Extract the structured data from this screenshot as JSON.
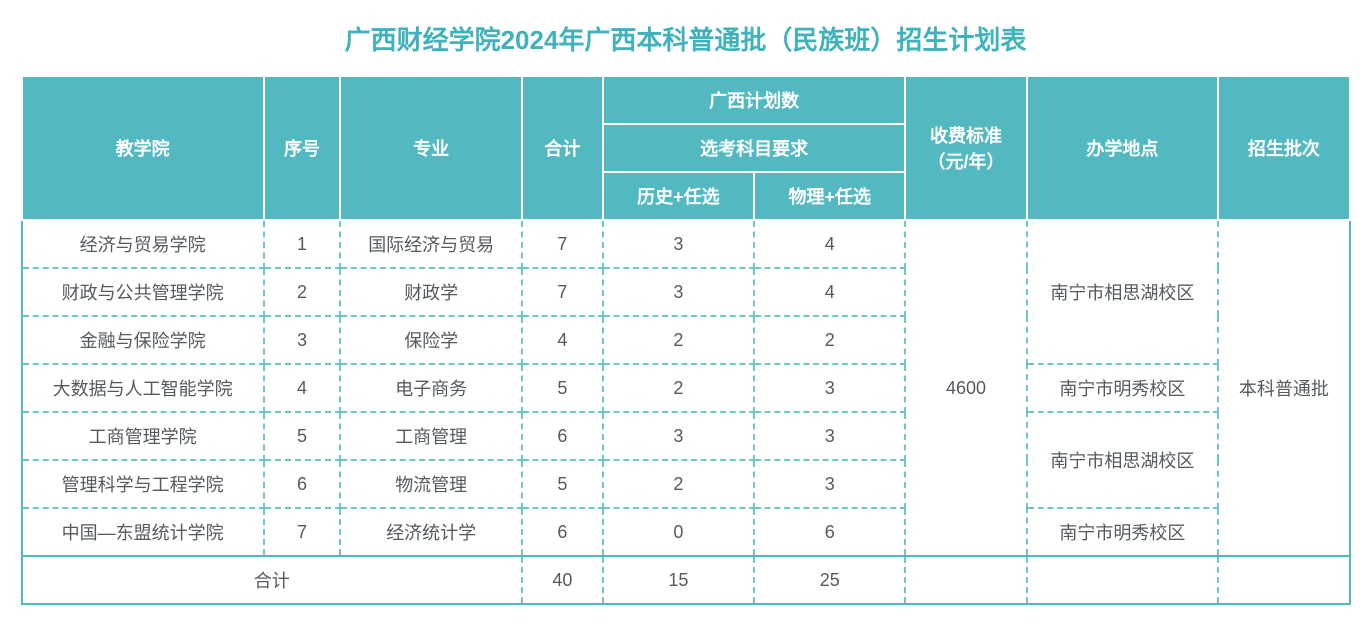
{
  "title": "广西财经学院2024年广西本科普通批（民族班）招生计划表",
  "title_color": "#3fb2bb",
  "header_bg": "#52b9c0",
  "header_text": "#ffffff",
  "body_text": "#555a5f",
  "border_dash_color": "#6fc5cb",
  "border_solid_color": "#52b9c0",
  "headers": {
    "school": "教学院",
    "index": "序号",
    "major": "专业",
    "total": "合计",
    "gx_plan": "广西计划数",
    "subject_req": "选考科目要求",
    "history": "历史+任选",
    "physics": "物理+任选",
    "fee": "收费标准（元/年）",
    "location": "办学地点",
    "batch": "招生批次"
  },
  "rows": [
    {
      "school": "经济与贸易学院",
      "index": "1",
      "major": "国际经济与贸易",
      "total": "7",
      "history": "3",
      "physics": "4"
    },
    {
      "school": "财政与公共管理学院",
      "index": "2",
      "major": "财政学",
      "total": "7",
      "history": "3",
      "physics": "4"
    },
    {
      "school": "金融与保险学院",
      "index": "3",
      "major": "保险学",
      "total": "4",
      "history": "2",
      "physics": "2"
    },
    {
      "school": "大数据与人工智能学院",
      "index": "4",
      "major": "电子商务",
      "total": "5",
      "history": "2",
      "physics": "3"
    },
    {
      "school": "工商管理学院",
      "index": "5",
      "major": "工商管理",
      "total": "6",
      "history": "3",
      "physics": "3"
    },
    {
      "school": "管理科学与工程学院",
      "index": "6",
      "major": "物流管理",
      "total": "5",
      "history": "2",
      "physics": "3"
    },
    {
      "school": "中国—东盟统计学院",
      "index": "7",
      "major": "经济统计学",
      "total": "6",
      "history": "0",
      "physics": "6"
    }
  ],
  "fee_value": "4600",
  "locations": {
    "group1": "南宁市相思湖校区",
    "group2": "南宁市明秀校区",
    "group3": "南宁市相思湖校区",
    "group4": "南宁市明秀校区"
  },
  "batch_value": "本科普通批",
  "footer": {
    "label": "合计",
    "total": "40",
    "history": "15",
    "physics": "25"
  }
}
